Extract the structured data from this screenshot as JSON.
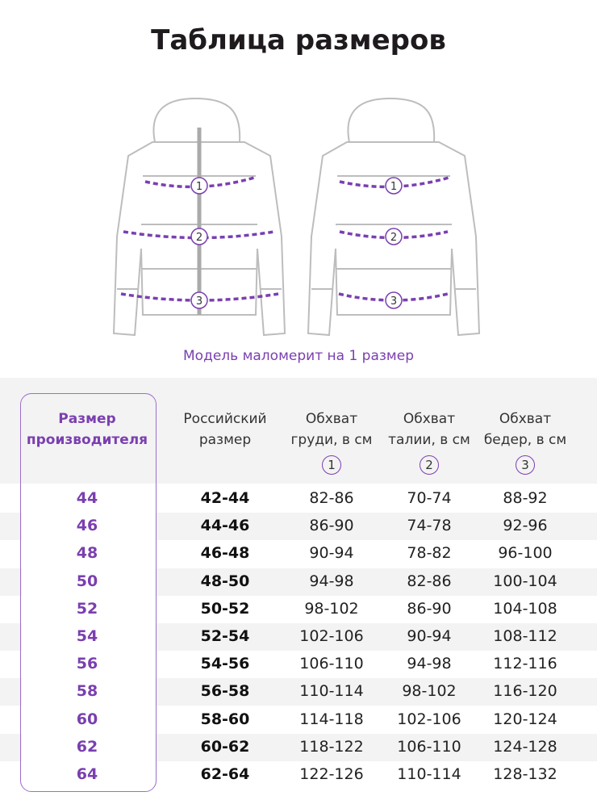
{
  "header": {
    "title": "Таблица размеров"
  },
  "note": "Модель маломерит на 1 размер",
  "table": {
    "columns": [
      {
        "label": "Размер производителя"
      },
      {
        "label": "Российский размер"
      },
      {
        "label": "Обхват груди, в см",
        "marker": "1"
      },
      {
        "label": "Обхват талии, в см",
        "marker": "2"
      },
      {
        "label": "Обхват бедер, в см",
        "marker": "3"
      }
    ],
    "rows": [
      [
        "44",
        "42-44",
        "82-86",
        "70-74",
        "88-92"
      ],
      [
        "46",
        "44-46",
        "86-90",
        "74-78",
        "92-96"
      ],
      [
        "48",
        "46-48",
        "90-94",
        "78-82",
        "96-100"
      ],
      [
        "50",
        "48-50",
        "94-98",
        "82-86",
        "100-104"
      ],
      [
        "52",
        "50-52",
        "98-102",
        "86-90",
        "104-108"
      ],
      [
        "54",
        "52-54",
        "102-106",
        "90-94",
        "108-112"
      ],
      [
        "56",
        "54-56",
        "106-110",
        "94-98",
        "112-116"
      ],
      [
        "58",
        "56-58",
        "110-114",
        "98-102",
        "116-120"
      ],
      [
        "60",
        "58-60",
        "114-118",
        "102-106",
        "120-124"
      ],
      [
        "62",
        "60-62",
        "118-122",
        "106-110",
        "124-128"
      ],
      [
        "64",
        "62-64",
        "122-126",
        "110-114",
        "128-132"
      ]
    ]
  }
}
